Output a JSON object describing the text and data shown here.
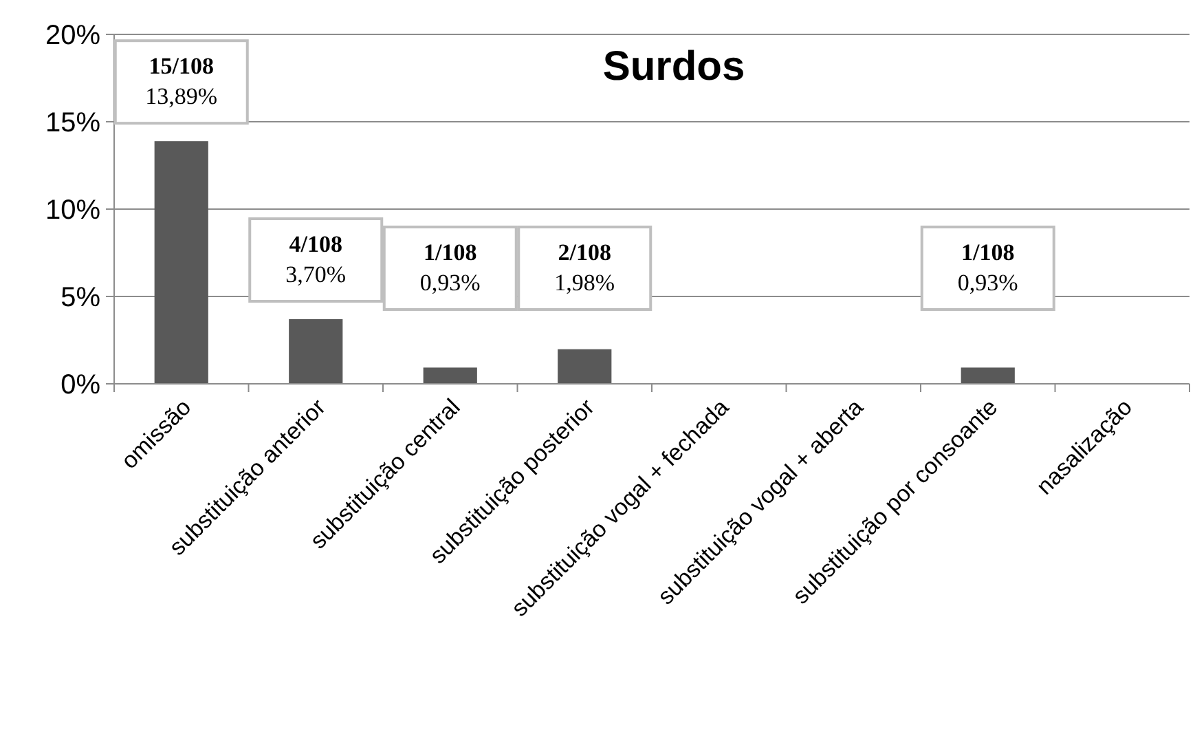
{
  "chart_data": {
    "type": "bar",
    "title": "Surdos",
    "categories": [
      "omissão",
      "substituição anterior",
      "substituição central",
      "substituição posterior",
      "substituição vogal + fechada",
      "substituição  vogal + aberta",
      "substituição por consoante",
      "nasalização"
    ],
    "values": [
      13.89,
      3.7,
      0.93,
      1.98,
      0,
      0,
      0.93,
      0
    ],
    "value_labels": [
      "15/108\n13,89%",
      "4/108\n3,70%",
      "1/108\n0,93%",
      "2/108\n1,98%",
      null,
      null,
      "1/108\n0,93%",
      null
    ],
    "color": "#595959",
    "ylim": [
      0,
      20
    ],
    "yticks": [
      {
        "value": 0,
        "label": "0%"
      },
      {
        "value": 5,
        "label": "5%"
      },
      {
        "value": 10,
        "label": "10%"
      },
      {
        "value": 15,
        "label": "15%"
      },
      {
        "value": 20,
        "label": "20%"
      }
    ],
    "grid": "y"
  }
}
